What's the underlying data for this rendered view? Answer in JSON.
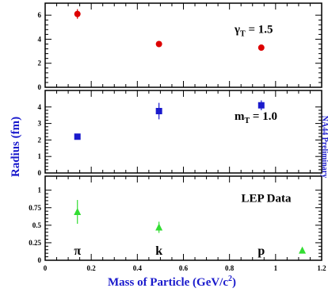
{
  "chart_data": [
    {
      "type": "scatter",
      "panel": "top",
      "annotation": {
        "symbol": "γ",
        "sub": "T",
        "rest": " = 1.5"
      },
      "ylim": [
        0,
        7
      ],
      "yticks": [
        "0",
        "2",
        "4",
        "6"
      ],
      "color": "#dd0000",
      "marker": "circle",
      "points": [
        {
          "x": 0.14,
          "y": 6.1,
          "err": 0.4
        },
        {
          "x": 0.494,
          "y": 3.6,
          "err": 0.2
        },
        {
          "x": 0.938,
          "y": 3.3,
          "err": 0.1
        }
      ]
    },
    {
      "type": "scatter",
      "panel": "middle",
      "annotation": {
        "symbol": "m",
        "sub": "T",
        "rest": " = 1.0"
      },
      "ylim": [
        0,
        5
      ],
      "yticks": [
        "0",
        "1",
        "2",
        "3",
        "4"
      ],
      "color": "#1a1acc",
      "marker": "square",
      "points": [
        {
          "x": 0.14,
          "y": 2.2,
          "err": 0.15
        },
        {
          "x": 0.494,
          "y": 3.75,
          "err": 0.5
        },
        {
          "x": 0.938,
          "y": 4.1,
          "err": 0.3
        }
      ]
    },
    {
      "type": "scatter",
      "panel": "bottom",
      "annotation": {
        "text": "LEP Data"
      },
      "ylim": [
        0,
        1.2
      ],
      "yticks": [
        "0",
        "0.25",
        "0.5",
        "0.75",
        "1"
      ],
      "color": "#33dd33",
      "marker": "triangle",
      "points": [
        {
          "x": 0.14,
          "y": 0.69,
          "err": 0.17
        },
        {
          "x": 0.494,
          "y": 0.47,
          "err": 0.08
        },
        {
          "x": 1.116,
          "y": 0.14,
          "err": 0.0
        }
      ],
      "particle_labels": [
        {
          "text": "π",
          "x": 0.14
        },
        {
          "text": "k",
          "x": 0.494
        },
        {
          "text": "p",
          "x": 0.938
        }
      ]
    }
  ],
  "axes": {
    "xlim": [
      0,
      1.2
    ],
    "xticks": [
      "0",
      "0.2",
      "0.4",
      "0.6",
      "0.8",
      "1",
      "1.2"
    ],
    "xlabel": "Mass of Particle (GeV/c",
    "xlabel_sup": "2",
    "xlabel_end": ")",
    "ylabel": "Radius (fm)",
    "side_text": "NA44 Preliminary"
  }
}
